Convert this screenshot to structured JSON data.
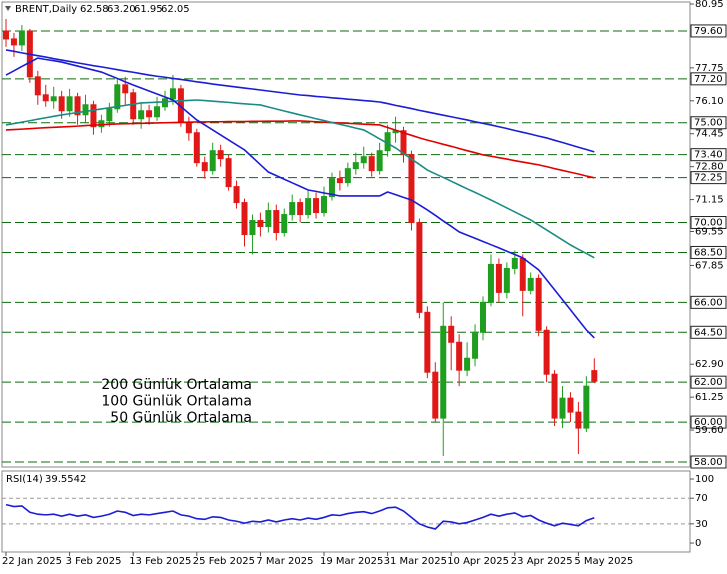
{
  "header": {
    "symbol": "BRENT,Daily",
    "ohlc": [
      "62.58",
      "63.20",
      "61.95",
      "62.05"
    ]
  },
  "chart_data": [
    {
      "type": "candlestick",
      "categories": [
        "22 Jan 2025",
        null,
        null,
        null,
        null,
        null,
        null,
        null,
        "3 Feb 2025",
        null,
        null,
        null,
        null,
        null,
        null,
        null,
        "13 Feb 2025",
        null,
        null,
        null,
        null,
        null,
        null,
        null,
        "25 Feb 2025",
        null,
        null,
        null,
        null,
        null,
        null,
        null,
        "7 Mar 2025",
        null,
        null,
        null,
        null,
        null,
        null,
        null,
        "19 Mar 2025",
        null,
        null,
        null,
        null,
        null,
        null,
        null,
        "31 Mar 2025",
        null,
        null,
        null,
        null,
        null,
        null,
        null,
        "10 Apr 2025",
        null,
        null,
        null,
        null,
        null,
        null,
        null,
        "23 Apr 2025",
        null,
        null,
        null,
        null,
        null,
        null,
        null,
        "5 May 2025",
        null,
        null
      ],
      "ohlc": {
        "open": [
          79.6,
          79.2,
          78.9,
          79.6,
          77.3,
          76.4,
          76.1,
          76.3,
          75.6,
          76.3,
          75.4,
          75.9,
          74.8,
          75.1,
          75.7,
          76.9,
          76.5,
          75.2,
          75.6,
          75.3,
          75.8,
          76.2,
          76.7,
          75.0,
          74.5,
          73.0,
          72.6,
          73.6,
          73.2,
          71.8,
          71.0,
          69.4,
          70.1,
          69.8,
          70.6,
          69.5,
          70.4,
          71.0,
          70.4,
          71.2,
          70.5,
          71.3,
          72.2,
          72.0,
          72.7,
          73.0,
          73.3,
          72.6,
          73.6,
          74.5,
          74.6,
          73.4,
          70.0,
          65.5,
          62.5,
          60.2,
          64.8,
          64.0,
          62.6,
          63.2,
          64.5,
          66.0,
          67.9,
          66.5,
          67.7,
          68.2,
          66.6,
          67.2,
          64.6,
          62.4,
          60.2,
          61.2,
          60.5,
          59.7,
          62.58
        ],
        "high": [
          80.2,
          79.5,
          79.9,
          79.7,
          77.6,
          76.9,
          76.8,
          76.6,
          76.7,
          76.5,
          76.4,
          76.1,
          75.4,
          76.0,
          77.2,
          77.3,
          76.7,
          76.0,
          75.9,
          76.3,
          76.6,
          77.4,
          76.9,
          75.3,
          74.7,
          73.3,
          74.0,
          73.9,
          73.4,
          72.1,
          71.2,
          70.4,
          70.5,
          71.0,
          70.9,
          70.7,
          71.4,
          71.2,
          71.6,
          71.5,
          71.8,
          72.5,
          72.6,
          73.0,
          73.5,
          73.8,
          73.5,
          74.0,
          74.9,
          75.3,
          74.8,
          73.6,
          70.2,
          65.8,
          63.0,
          66.0,
          65.3,
          64.4,
          64.0,
          64.9,
          66.3,
          68.4,
          68.2,
          68.0,
          68.6,
          68.4,
          67.5,
          67.4,
          64.8,
          62.6,
          61.8,
          61.5,
          61.0,
          62.3,
          63.2
        ],
        "low": [
          78.8,
          78.3,
          78.6,
          77.0,
          75.9,
          75.8,
          75.7,
          75.2,
          75.3,
          74.9,
          75.0,
          74.4,
          74.5,
          74.8,
          75.5,
          75.9,
          74.9,
          74.7,
          74.9,
          75.1,
          75.6,
          75.9,
          74.8,
          74.1,
          72.8,
          72.2,
          72.4,
          72.8,
          71.6,
          70.7,
          68.8,
          68.4,
          69.3,
          69.5,
          69.1,
          69.3,
          70.1,
          70.0,
          70.2,
          70.2,
          70.3,
          71.1,
          71.6,
          71.8,
          72.4,
          72.7,
          72.3,
          72.4,
          73.3,
          74.0,
          73.0,
          69.6,
          65.2,
          62.2,
          60.0,
          58.3,
          62.6,
          61.8,
          62.3,
          62.8,
          64.1,
          65.8,
          66.0,
          66.2,
          67.4,
          65.3,
          66.4,
          64.3,
          62.0,
          59.8,
          59.7,
          60.0,
          58.4,
          59.5,
          61.95
        ],
        "close": [
          79.2,
          78.9,
          79.6,
          77.3,
          76.4,
          76.1,
          76.3,
          75.6,
          76.3,
          75.4,
          75.9,
          74.8,
          75.1,
          75.7,
          76.9,
          76.5,
          75.2,
          75.6,
          75.3,
          75.8,
          76.2,
          76.7,
          75.0,
          74.5,
          73.0,
          72.6,
          73.6,
          73.2,
          71.8,
          71.0,
          69.4,
          70.1,
          69.8,
          70.6,
          69.5,
          70.4,
          71.0,
          70.4,
          71.2,
          70.5,
          71.3,
          72.2,
          72.0,
          72.7,
          73.0,
          73.3,
          72.6,
          73.6,
          74.5,
          74.6,
          73.4,
          70.0,
          65.5,
          62.5,
          60.2,
          64.8,
          64.0,
          62.6,
          63.2,
          64.5,
          66.0,
          67.9,
          66.5,
          67.7,
          68.2,
          66.6,
          67.2,
          64.6,
          62.4,
          60.2,
          61.2,
          60.5,
          59.7,
          61.8,
          62.05
        ]
      },
      "up_color": "#1f9e1f",
      "down_color": "#e01818",
      "series": [
        {
          "name": "200 Günlük Ortalama",
          "color": "#1c1cd6",
          "values": [
            78.65,
            78.58,
            78.5,
            78.43,
            78.36,
            78.29,
            78.21,
            78.14,
            78.07,
            78.0,
            77.93,
            77.86,
            77.8,
            77.73,
            77.66,
            77.59,
            77.53,
            77.46,
            77.39,
            77.33,
            77.28,
            77.22,
            77.17,
            77.11,
            77.05,
            77.0,
            76.94,
            76.89,
            76.84,
            76.79,
            76.74,
            76.69,
            76.64,
            76.59,
            76.54,
            76.49,
            76.44,
            76.39,
            76.36,
            76.32,
            76.29,
            76.25,
            76.22,
            76.18,
            76.15,
            76.11,
            76.08,
            76.04,
            75.96,
            75.87,
            75.79,
            75.71,
            75.62,
            75.54,
            75.46,
            75.38,
            75.3,
            75.22,
            75.14,
            75.05,
            74.97,
            74.89,
            74.8,
            74.71,
            74.61,
            74.52,
            74.43,
            74.33,
            74.24,
            74.12,
            74.01,
            73.89,
            73.77,
            73.66,
            73.54
          ]
        },
        {
          "name": "100 Günlük Ortalama",
          "color": "#e00000",
          "values": [
            74.64,
            74.66,
            74.68,
            74.7,
            74.73,
            74.75,
            74.77,
            74.79,
            74.81,
            74.83,
            74.86,
            74.88,
            74.9,
            74.92,
            74.94,
            74.95,
            74.96,
            74.97,
            74.98,
            74.99,
            75.0,
            75.01,
            75.02,
            75.03,
            75.04,
            75.04,
            75.05,
            75.05,
            75.06,
            75.06,
            75.06,
            75.07,
            75.07,
            75.08,
            75.08,
            75.08,
            75.09,
            75.09,
            75.07,
            75.05,
            75.03,
            75.01,
            74.99,
            74.97,
            74.95,
            74.93,
            74.91,
            74.89,
            74.76,
            74.63,
            74.5,
            74.37,
            74.24,
            74.13,
            74.03,
            73.92,
            73.82,
            73.71,
            73.6,
            73.5,
            73.39,
            73.32,
            73.25,
            73.18,
            73.1,
            73.03,
            72.96,
            72.89,
            72.8,
            72.7,
            72.61,
            72.52,
            72.43,
            72.33,
            72.24
          ]
        },
        {
          "name": "50 Günlük Ortalama",
          "color": "#1a8c84",
          "values": [
            74.89,
            74.96,
            75.03,
            75.1,
            75.18,
            75.25,
            75.32,
            75.39,
            75.45,
            75.51,
            75.57,
            75.63,
            75.69,
            75.75,
            75.81,
            75.87,
            75.93,
            75.99,
            76.01,
            76.03,
            76.05,
            76.08,
            76.1,
            76.12,
            76.14,
            76.11,
            76.08,
            76.05,
            76.02,
            75.98,
            75.95,
            75.92,
            75.89,
            75.79,
            75.69,
            75.59,
            75.49,
            75.39,
            75.3,
            75.2,
            75.11,
            75.01,
            74.92,
            74.83,
            74.73,
            74.64,
            74.42,
            74.19,
            73.97,
            73.74,
            73.46,
            73.18,
            72.91,
            72.63,
            72.44,
            72.26,
            72.07,
            71.88,
            71.69,
            71.51,
            71.32,
            71.13,
            70.93,
            70.73,
            70.53,
            70.33,
            70.13,
            69.88,
            69.63,
            69.38,
            69.13,
            68.88,
            68.66,
            68.45,
            68.23
          ]
        },
        {
          "color": "#1c1cd6",
          "values": [
            77.39,
            77.6,
            77.82,
            78.03,
            78.24,
            78.17,
            78.11,
            78.04,
            77.94,
            77.84,
            77.74,
            77.64,
            77.54,
            77.38,
            77.22,
            77.05,
            76.89,
            76.74,
            76.59,
            76.44,
            76.29,
            76.14,
            75.81,
            75.47,
            75.14,
            74.89,
            74.64,
            74.39,
            74.14,
            73.89,
            73.64,
            73.27,
            72.9,
            72.53,
            72.35,
            72.17,
            71.99,
            71.81,
            71.63,
            71.56,
            71.48,
            71.41,
            71.33,
            71.33,
            71.33,
            71.33,
            71.33,
            71.33,
            71.53,
            71.4,
            71.26,
            71.13,
            70.88,
            70.63,
            70.36,
            70.08,
            69.81,
            69.53,
            69.37,
            69.21,
            69.05,
            68.89,
            68.73,
            68.56,
            68.4,
            68.23,
            67.93,
            67.63,
            67.13,
            66.63,
            66.13,
            65.63,
            65.12,
            64.62,
            64.22
          ]
        }
      ],
      "ylim": [
        57.75,
        81.05
      ],
      "yticks": [
        {
          "value": 80.95,
          "label": "80.95"
        },
        {
          "value": 77.75,
          "label": "77.75"
        },
        {
          "value": 76.1,
          "label": "76.10"
        },
        {
          "value": 74.45,
          "label": "74.45"
        },
        {
          "value": 72.8,
          "label": "72.80"
        },
        {
          "value": 71.15,
          "label": "71.15"
        },
        {
          "value": 69.55,
          "label": "69.55"
        },
        {
          "value": 67.85,
          "label": "67.85"
        },
        {
          "value": 62.9,
          "label": "62.90"
        },
        {
          "value": 61.25,
          "label": "61.25"
        },
        {
          "value": 59.6,
          "label": "59.60"
        }
      ],
      "levels": [
        {
          "value": 79.6,
          "label": "79.60"
        },
        {
          "value": 77.2,
          "label": "77.20"
        },
        {
          "value": 75,
          "label": "75.00"
        },
        {
          "value": 73.4,
          "label": "73.40"
        },
        {
          "value": 72.25,
          "label": "72.25"
        },
        {
          "value": 70,
          "label": "70.00"
        },
        {
          "value": 68.5,
          "label": "68.50"
        },
        {
          "value": 66,
          "label": "66.00"
        },
        {
          "value": 64.5,
          "label": "64.50"
        },
        {
          "value": 62,
          "label": "62.00"
        },
        {
          "value": 60,
          "label": "60.00"
        },
        {
          "value": 58,
          "label": "58.00"
        }
      ],
      "level_color": "#0f6b0f"
    },
    {
      "type": "line",
      "title": "RSI(14)",
      "series": [
        {
          "color": "#1c1cd6",
          "values": [
            60,
            57,
            58,
            48,
            45,
            44,
            45,
            42,
            45,
            42,
            44,
            40,
            42,
            45,
            50,
            48,
            43,
            45,
            44,
            46,
            48,
            50,
            44,
            42,
            38,
            37,
            41,
            40,
            36,
            34,
            31,
            34,
            33,
            36,
            33,
            36,
            38,
            36,
            39,
            37,
            40,
            44,
            43,
            46,
            48,
            49,
            46,
            50,
            55,
            56,
            50,
            40,
            30,
            25,
            22,
            34,
            33,
            30,
            32,
            36,
            40,
            45,
            42,
            45,
            47,
            41,
            43,
            36,
            31,
            27,
            31,
            29,
            27,
            35,
            39.5542
          ]
        }
      ],
      "ylim": [
        -14,
        112.5
      ],
      "yticks": [
        0,
        30,
        70,
        100
      ],
      "levels": [
        30,
        70
      ]
    }
  ]
}
